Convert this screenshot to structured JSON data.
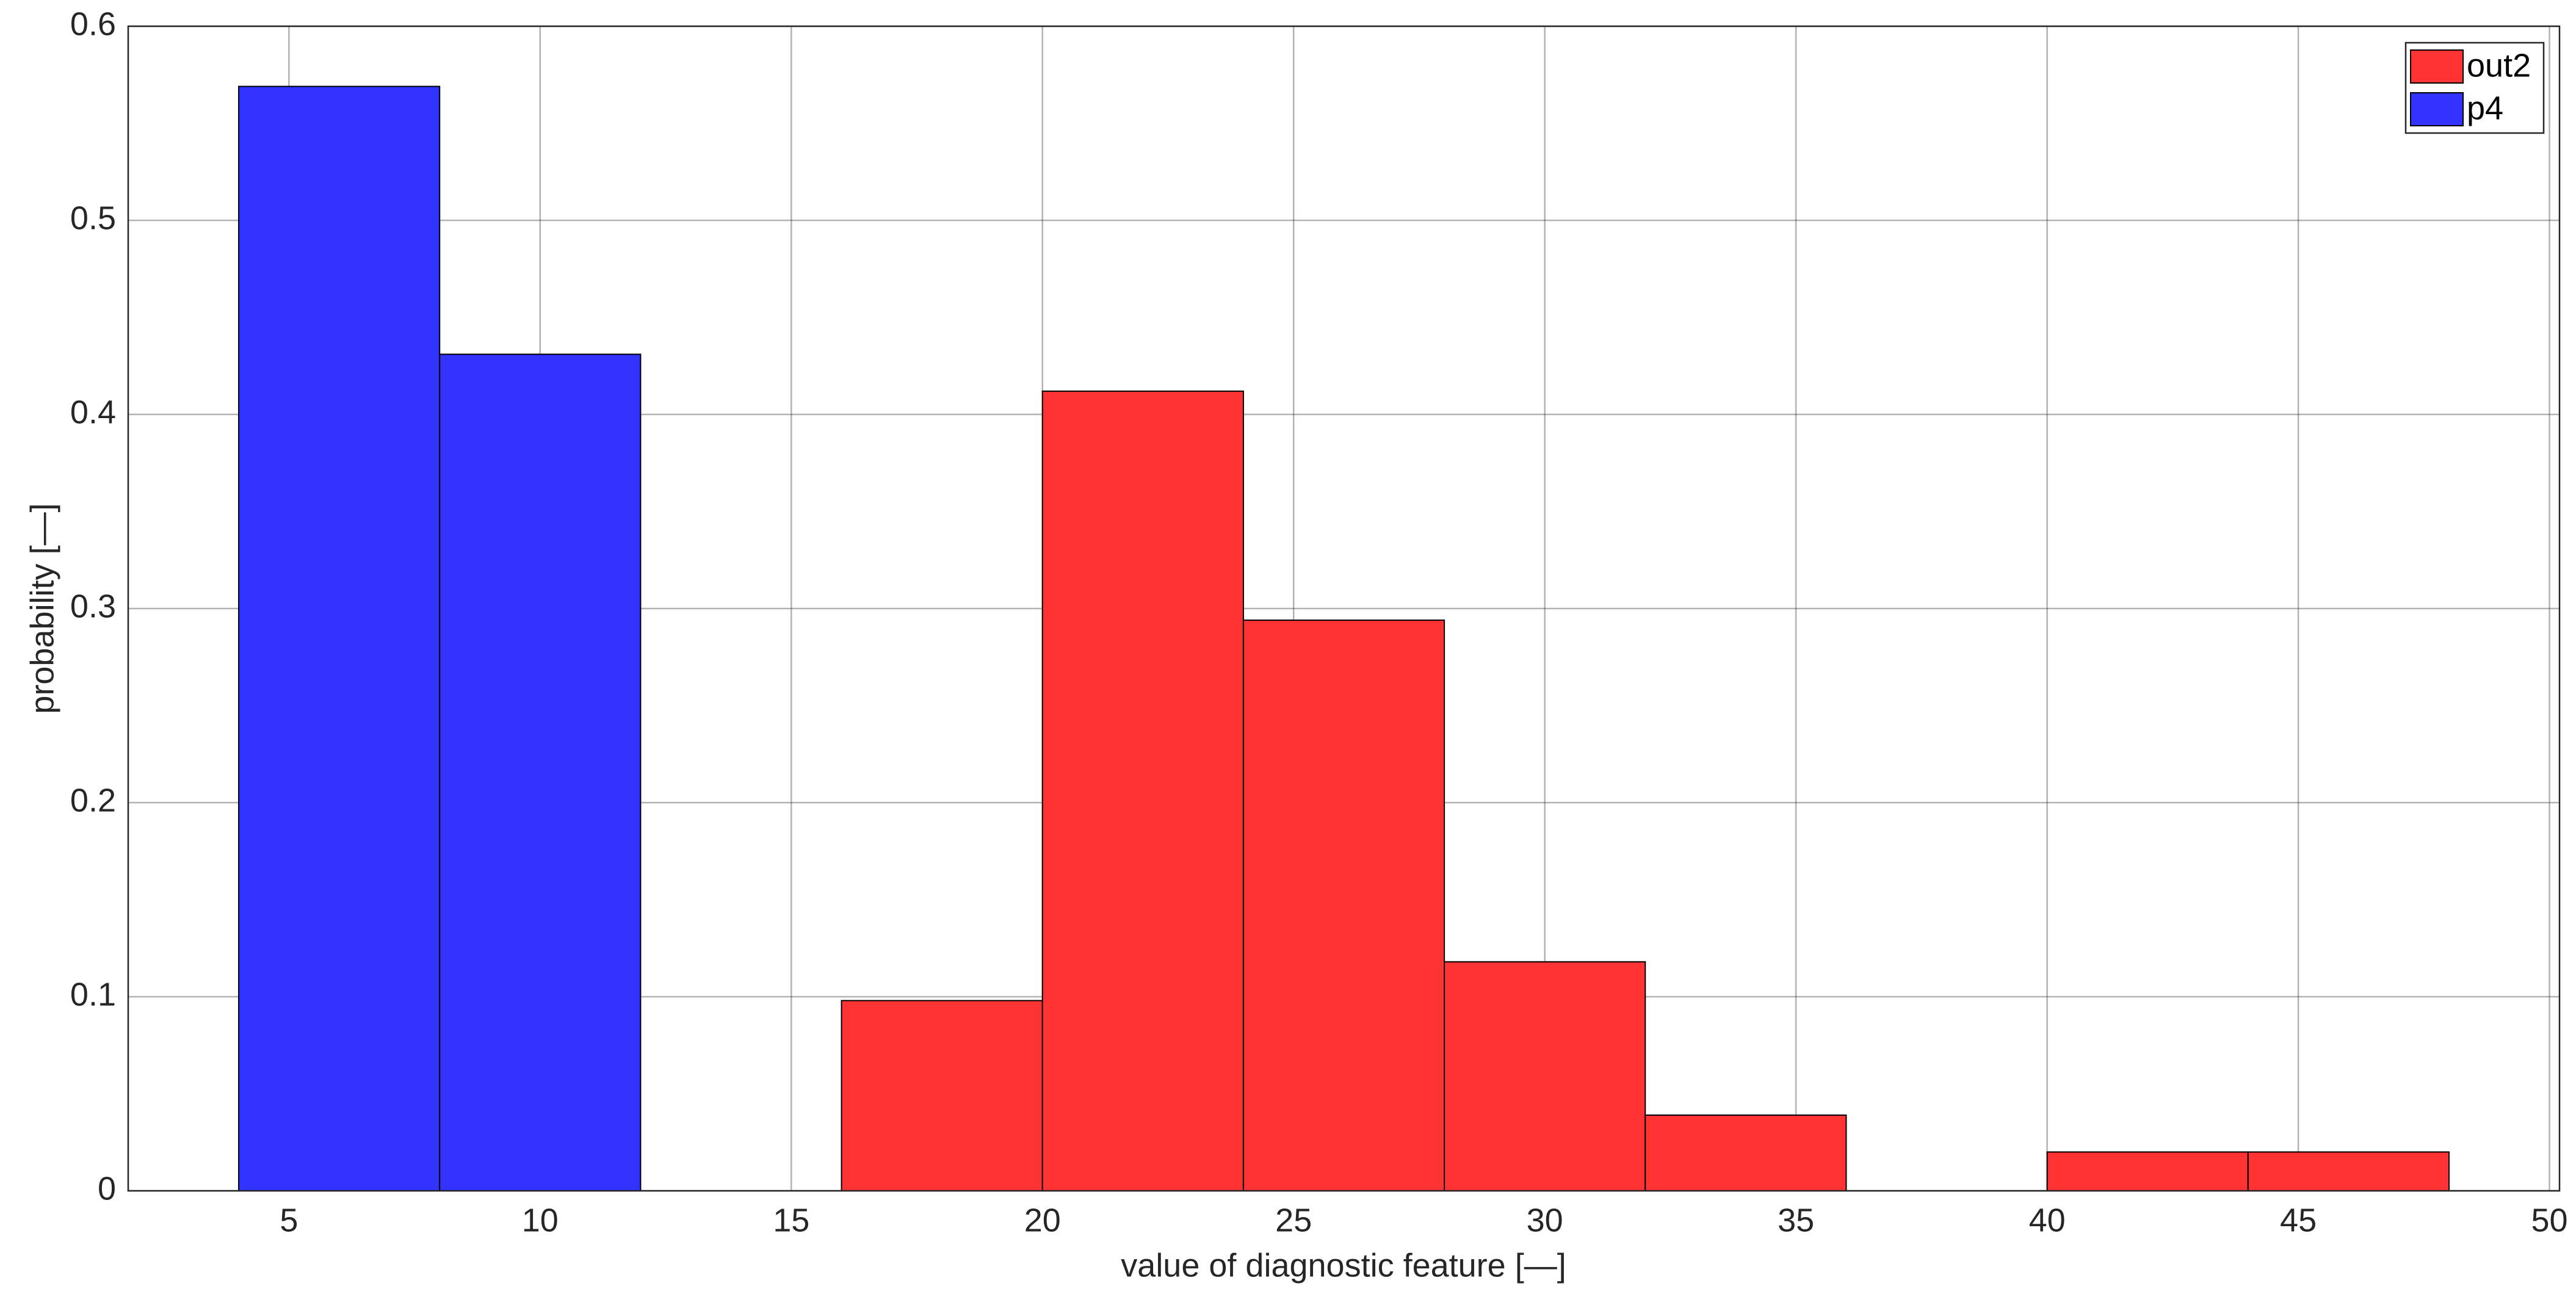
{
  "chart_data": {
    "type": "histogram",
    "xlabel": "value of diagnostic feature [—]",
    "ylabel": "probability [—]",
    "series": [
      {
        "name": "out2",
        "color": "#ff3333",
        "bins": [
          16,
          20,
          24,
          28,
          32,
          36,
          40,
          44,
          48
        ],
        "values": [
          0.098,
          0.412,
          0.294,
          0.118,
          0.039,
          0,
          0.02,
          0.02
        ]
      },
      {
        "name": "p4",
        "color": "#3333ff",
        "bins": [
          4,
          8,
          12
        ],
        "values": [
          0.569,
          0.431
        ]
      }
    ],
    "xlim": [
      1.8,
      50.2
    ],
    "xticks": [
      5,
      10,
      15,
      20,
      25,
      30,
      35,
      40,
      45,
      50
    ],
    "ylim": [
      0,
      0.6
    ],
    "yticks": [
      0,
      0.1,
      0.2,
      0.3,
      0.4,
      0.5,
      0.6
    ],
    "grid": true,
    "legend": "upper right"
  }
}
